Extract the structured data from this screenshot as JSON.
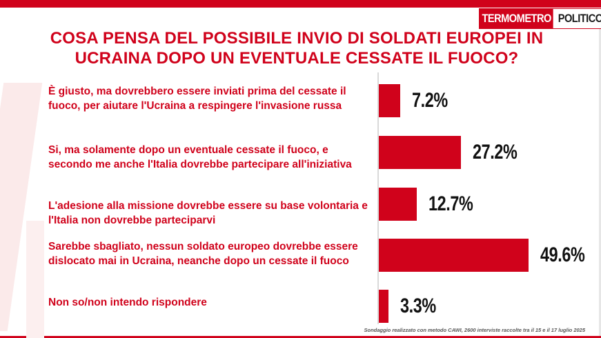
{
  "brand": {
    "logo_part1": "TERMOMETRO",
    "logo_part2": "POLITICO",
    "accent_color": "#d0021b"
  },
  "chart_data": {
    "type": "bar",
    "orientation": "horizontal",
    "title": "COSA PENSA DEL POSSIBILE INVIO DI SOLDATI EUROPEI IN UCRAINA DOPO UN EVENTUALE CESSATE IL FUOCO?",
    "categories": [
      "È giusto, ma dovrebbero essere inviati prima del cessate il fuoco, per aiutare l'Ucraina a respingere l'invasione russa",
      "Si, ma solamente dopo un eventuale cessate il fuoco, e secondo me anche l'Italia dovrebbe partecipare all'iniziativa",
      "L'adesione alla missione dovrebbe essere su base volontaria e l'Italia non dovrebbe parteciparvi",
      "Sarebbe sbagliato, nessun soldato europeo dovrebbe essere dislocato mai in Ucraina, neanche dopo un cessate il fuoco",
      "Non so/non intendo rispondere"
    ],
    "values": [
      7.2,
      27.2,
      12.7,
      49.6,
      3.3
    ],
    "value_labels": [
      "7.2%",
      "27.2%",
      "12.7%",
      "49.6%",
      "3.3%"
    ],
    "unit": "%",
    "bar_color": "#d0021b",
    "grid": false,
    "legend": "none"
  },
  "footnote": "Sondaggio realizzato con metodo CAWI, 2600 interviste raccolte tra il 15 e il 17 luglio 2025"
}
